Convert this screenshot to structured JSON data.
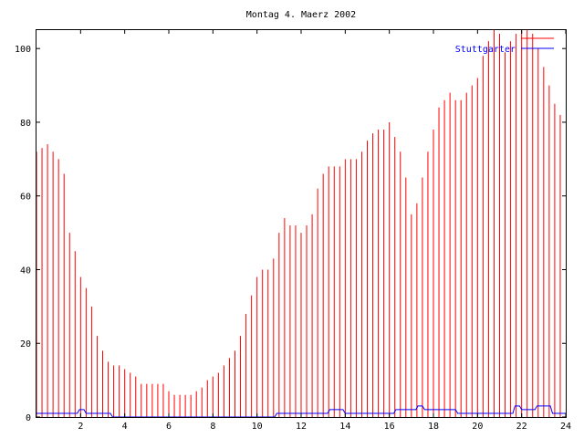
{
  "chart_data": {
    "type": "bar",
    "title": "Montag 4. Maerz 2002",
    "xlim": [
      0,
      24
    ],
    "ylim": [
      0,
      105
    ],
    "xticks": [
      2,
      4,
      6,
      8,
      10,
      12,
      14,
      16,
      18,
      20,
      22,
      24
    ],
    "yticks": [
      0,
      20,
      40,
      60,
      80,
      100
    ],
    "grid": false,
    "legend_position": "top-right",
    "series": [
      {
        "name": "",
        "color": "#ff0000",
        "style": "impulses",
        "points": [
          [
            0.0,
            72
          ],
          [
            0.25,
            73
          ],
          [
            0.5,
            74
          ],
          [
            0.75,
            72
          ],
          [
            1.0,
            70
          ],
          [
            1.25,
            66
          ],
          [
            1.5,
            50
          ],
          [
            1.75,
            45
          ],
          [
            2.0,
            38
          ],
          [
            2.25,
            35
          ],
          [
            2.5,
            30
          ],
          [
            2.75,
            22
          ],
          [
            3.0,
            18
          ],
          [
            3.25,
            15
          ],
          [
            3.5,
            14
          ],
          [
            3.75,
            14
          ],
          [
            4.0,
            13
          ],
          [
            4.25,
            12
          ],
          [
            4.5,
            11
          ],
          [
            4.75,
            9
          ],
          [
            5.0,
            9
          ],
          [
            5.25,
            9
          ],
          [
            5.5,
            9
          ],
          [
            5.75,
            9
          ],
          [
            6.0,
            7
          ],
          [
            6.25,
            6
          ],
          [
            6.5,
            6
          ],
          [
            6.75,
            6
          ],
          [
            7.0,
            6
          ],
          [
            7.25,
            7
          ],
          [
            7.5,
            8
          ],
          [
            7.75,
            10
          ],
          [
            8.0,
            11
          ],
          [
            8.25,
            12
          ],
          [
            8.5,
            14
          ],
          [
            8.75,
            16
          ],
          [
            9.0,
            18
          ],
          [
            9.25,
            22
          ],
          [
            9.5,
            28
          ],
          [
            9.75,
            33
          ],
          [
            10.0,
            38
          ],
          [
            10.25,
            40
          ],
          [
            10.5,
            40
          ],
          [
            10.75,
            43
          ],
          [
            11.0,
            50
          ],
          [
            11.25,
            54
          ],
          [
            11.5,
            52
          ],
          [
            11.75,
            52
          ],
          [
            12.0,
            50
          ],
          [
            12.25,
            52
          ],
          [
            12.5,
            55
          ],
          [
            12.75,
            62
          ],
          [
            13.0,
            66
          ],
          [
            13.25,
            68
          ],
          [
            13.5,
            68
          ],
          [
            13.75,
            68
          ],
          [
            14.0,
            70
          ],
          [
            14.25,
            70
          ],
          [
            14.5,
            70
          ],
          [
            14.75,
            72
          ],
          [
            15.0,
            75
          ],
          [
            15.25,
            77
          ],
          [
            15.5,
            78
          ],
          [
            15.75,
            78
          ],
          [
            16.0,
            80
          ],
          [
            16.25,
            76
          ],
          [
            16.5,
            72
          ],
          [
            16.75,
            65
          ],
          [
            17.0,
            55
          ],
          [
            17.25,
            58
          ],
          [
            17.5,
            65
          ],
          [
            17.75,
            72
          ],
          [
            18.0,
            78
          ],
          [
            18.25,
            84
          ],
          [
            18.5,
            86
          ],
          [
            18.75,
            88
          ],
          [
            19.0,
            86
          ],
          [
            19.25,
            86
          ],
          [
            19.5,
            88
          ],
          [
            19.75,
            90
          ],
          [
            20.0,
            92
          ],
          [
            20.25,
            98
          ],
          [
            20.5,
            102
          ],
          [
            20.75,
            105
          ],
          [
            21.0,
            104
          ],
          [
            21.25,
            99
          ],
          [
            21.5,
            102
          ],
          [
            21.75,
            104
          ],
          [
            22.0,
            105
          ],
          [
            22.25,
            105
          ],
          [
            22.5,
            104
          ],
          [
            22.75,
            100
          ],
          [
            23.0,
            95
          ],
          [
            23.25,
            90
          ],
          [
            23.5,
            85
          ],
          [
            23.75,
            82
          ]
        ]
      },
      {
        "name": "Stuttgarter",
        "color": "#0000ff",
        "style": "lines",
        "points": [
          [
            0,
            1
          ],
          [
            1.85,
            1
          ],
          [
            1.95,
            2
          ],
          [
            2.15,
            2
          ],
          [
            2.25,
            1
          ],
          [
            3.35,
            1
          ],
          [
            3.45,
            0
          ],
          [
            10.8,
            0
          ],
          [
            10.9,
            1
          ],
          [
            13.2,
            1
          ],
          [
            13.3,
            2
          ],
          [
            13.9,
            2
          ],
          [
            14.0,
            1
          ],
          [
            16.2,
            1
          ],
          [
            16.3,
            2
          ],
          [
            17.2,
            2
          ],
          [
            17.3,
            3
          ],
          [
            17.5,
            3
          ],
          [
            17.6,
            2
          ],
          [
            19.0,
            2
          ],
          [
            19.1,
            1
          ],
          [
            21.6,
            1
          ],
          [
            21.7,
            3
          ],
          [
            21.9,
            3
          ],
          [
            22.0,
            2
          ],
          [
            22.6,
            2
          ],
          [
            22.7,
            3
          ],
          [
            23.3,
            3
          ],
          [
            23.4,
            1
          ],
          [
            24,
            1
          ]
        ]
      }
    ]
  }
}
